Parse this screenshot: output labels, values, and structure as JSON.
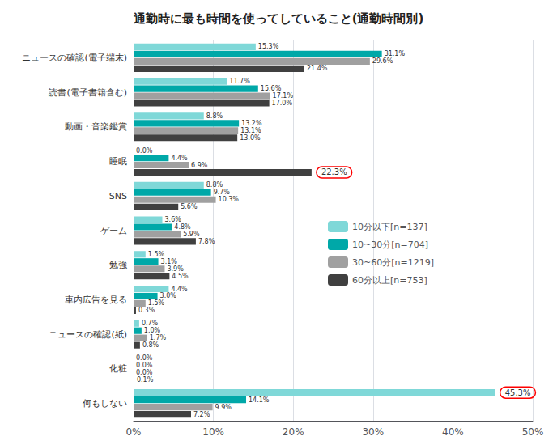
{
  "chart_data": {
    "type": "bar",
    "orientation": "horizontal",
    "title": "通勤時に最も時間を使ってしていること(通勤時間別)",
    "categories": [
      "ニュースの確認(電子端末)",
      "読書(電子書籍含む)",
      "動画・音楽鑑賞",
      "睡眠",
      "SNS",
      "ゲーム",
      "勉強",
      "車内広告を見る",
      "ニュースの確認(紙)",
      "化粧",
      "何もしない"
    ],
    "series": [
      {
        "name": "10分以下[n=137]",
        "color": "#7fd8d8",
        "values": [
          15.3,
          11.7,
          8.8,
          0.0,
          8.8,
          3.6,
          1.5,
          4.4,
          0.7,
          0.0,
          45.3
        ],
        "value_labels": [
          "15.3%",
          "11.7%",
          "8.8%",
          "0.0%",
          "8.8%",
          "3.6%",
          "1.5%",
          "4.4%",
          "0.7%",
          "0.0%",
          null
        ]
      },
      {
        "name": "10~30分[n=704]",
        "color": "#00a8a8",
        "values": [
          31.1,
          15.6,
          13.2,
          4.4,
          9.7,
          4.8,
          3.1,
          3.0,
          1.0,
          0.0,
          14.1
        ],
        "value_labels": [
          "31.1%",
          "15.6%",
          "13.2%",
          "4.4%",
          "9.7%",
          "4.8%",
          "3.1%",
          "3.0%",
          "1.0%",
          "0.0%",
          "14.1%"
        ]
      },
      {
        "name": "30~60分[n=1219]",
        "color": "#a0a0a0",
        "values": [
          29.6,
          17.1,
          13.1,
          6.9,
          10.3,
          5.9,
          3.9,
          1.5,
          1.7,
          0.0,
          9.9
        ],
        "value_labels": [
          "29.6%",
          "17.1%",
          "13.1%",
          "6.9%",
          "10.3%",
          "5.9%",
          "3.9%",
          "1.5%",
          "1.7%",
          "0.0%",
          "9.9%"
        ]
      },
      {
        "name": "60分以上[n=753]",
        "color": "#404040",
        "values": [
          21.4,
          17.0,
          13.0,
          22.3,
          5.6,
          7.8,
          4.5,
          0.3,
          0.8,
          0.1,
          7.2
        ],
        "value_labels": [
          "21.4%",
          "17.0%",
          "13.0%",
          null,
          "5.6%",
          "7.8%",
          "4.5%",
          "0.3%",
          "0.8%",
          "0.1%",
          "7.2%"
        ]
      }
    ],
    "annotations": [
      {
        "category": "睡眠",
        "series": "60分以上[n=753]",
        "text": "22.3%"
      },
      {
        "category": "何もしない",
        "series": "10分以下[n=137]",
        "text": "45.3%"
      }
    ],
    "xlim": [
      0,
      50
    ],
    "xticks": [
      {
        "value": 0,
        "label": "0%"
      },
      {
        "value": 10,
        "label": "10%"
      },
      {
        "value": 20,
        "label": "20%"
      },
      {
        "value": 30,
        "label": "30%"
      },
      {
        "value": 40,
        "label": "40%"
      },
      {
        "value": 50,
        "label": "50%"
      }
    ],
    "grid": true,
    "data_labels": true,
    "legend": "right"
  }
}
